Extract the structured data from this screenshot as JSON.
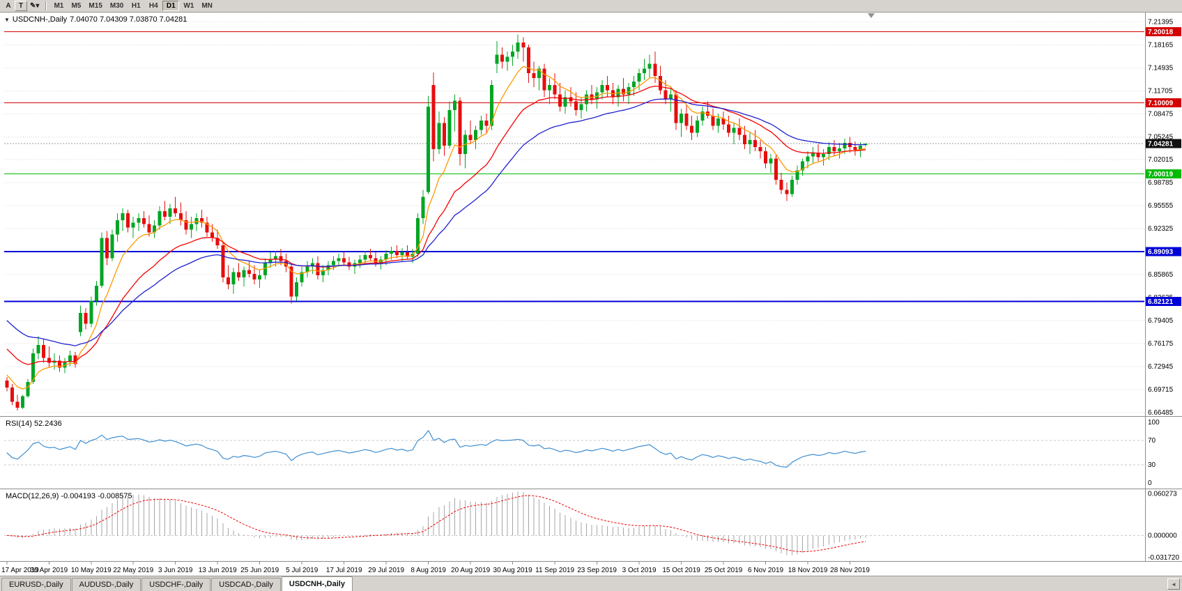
{
  "toolbar": {
    "button_a": "A",
    "button_t": "T",
    "draw_icon": "✎",
    "caret_icon": "▾",
    "timeframes": [
      {
        "label": "M1",
        "active": false
      },
      {
        "label": "M5",
        "active": false
      },
      {
        "label": "M15",
        "active": false
      },
      {
        "label": "M30",
        "active": false
      },
      {
        "label": "H1",
        "active": false
      },
      {
        "label": "H4",
        "active": false
      },
      {
        "label": "D1",
        "active": true
      },
      {
        "label": "W1",
        "active": false
      },
      {
        "label": "MN",
        "active": false
      }
    ]
  },
  "chart_header": {
    "collapse_icon": "▼",
    "symbol_title": "USDCNH-,Daily",
    "ohlc_text": "7.04070 7.04309 7.03870 7.04281"
  },
  "tabs": {
    "items": [
      {
        "label": "EURUSD-,Daily",
        "active": false
      },
      {
        "label": "AUDUSD-,Daily",
        "active": false
      },
      {
        "label": "USDCHF-,Daily",
        "active": false
      },
      {
        "label": "USDCAD-,Daily",
        "active": false
      },
      {
        "label": "USDCNH-,Daily",
        "active": true
      }
    ],
    "scroll_left_icon": "◄"
  },
  "chart_data": {
    "type": "candlestick",
    "symbol": "USDCNH-",
    "timeframe": "Daily",
    "colors": {
      "up": "#00A524",
      "down": "#E60D0D",
      "grid": "#DADADA",
      "background": "#FFFFFF"
    },
    "y_axis": {
      "min": 6.661,
      "max": 7.227,
      "grid_values": [
        6.66485,
        6.69715,
        6.72945,
        6.76175,
        6.79405,
        6.82635,
        6.85865,
        6.89095,
        6.92325,
        6.95555,
        6.98785,
        7.02015,
        7.05245,
        7.08475,
        7.11705,
        7.14935,
        7.18165,
        7.21395
      ]
    },
    "x_labels": [
      {
        "i": 0,
        "label": "17 Apr 2019"
      },
      {
        "i": 8,
        "label": "30 Apr 2019"
      },
      {
        "i": 16,
        "label": "10 May 2019"
      },
      {
        "i": 24,
        "label": "22 May 2019"
      },
      {
        "i": 32,
        "label": "3 Jun 2019"
      },
      {
        "i": 40,
        "label": "13 Jun 2019"
      },
      {
        "i": 48,
        "label": "25 Jun 2019"
      },
      {
        "i": 56,
        "label": "5 Jul 2019"
      },
      {
        "i": 64,
        "label": "17 Jul 2019"
      },
      {
        "i": 72,
        "label": "29 Jul 2019"
      },
      {
        "i": 80,
        "label": "8 Aug 2019"
      },
      {
        "i": 88,
        "label": "20 Aug 2019"
      },
      {
        "i": 96,
        "label": "30 Aug 2019"
      },
      {
        "i": 104,
        "label": "11 Sep 2019"
      },
      {
        "i": 112,
        "label": "23 Sep 2019"
      },
      {
        "i": 120,
        "label": "3 Oct 2019"
      },
      {
        "i": 128,
        "label": "15 Oct 2019"
      },
      {
        "i": 136,
        "label": "25 Oct 2019"
      },
      {
        "i": 144,
        "label": "6 Nov 2019"
      },
      {
        "i": 152,
        "label": "18 Nov 2019"
      },
      {
        "i": 160,
        "label": "28 Nov 2019"
      }
    ],
    "ohlc": [
      [
        6.71,
        6.715,
        6.695,
        6.7
      ],
      [
        6.7,
        6.705,
        6.675,
        6.68
      ],
      [
        6.68,
        6.69,
        6.668,
        6.672
      ],
      [
        6.672,
        6.69,
        6.67,
        6.688
      ],
      [
        6.688,
        6.712,
        6.686,
        6.708
      ],
      [
        6.708,
        6.755,
        6.705,
        6.748
      ],
      [
        6.748,
        6.772,
        6.74,
        6.76
      ],
      [
        6.76,
        6.768,
        6.735,
        6.742
      ],
      [
        6.742,
        6.758,
        6.728,
        6.735
      ],
      [
        6.735,
        6.748,
        6.725,
        6.738
      ],
      [
        6.738,
        6.745,
        6.722,
        6.728
      ],
      [
        6.728,
        6.742,
        6.72,
        6.736
      ],
      [
        6.736,
        6.752,
        6.73,
        6.745
      ],
      [
        6.745,
        6.75,
        6.728,
        6.733
      ],
      [
        6.778,
        6.815,
        6.772,
        6.805
      ],
      [
        6.805,
        6.812,
        6.782,
        6.79
      ],
      [
        6.79,
        6.828,
        6.785,
        6.822
      ],
      [
        6.822,
        6.85,
        6.815,
        6.843
      ],
      [
        6.843,
        6.918,
        6.84,
        6.91
      ],
      [
        6.91,
        6.92,
        6.872,
        6.882
      ],
      [
        6.882,
        6.922,
        6.878,
        6.915
      ],
      [
        6.915,
        6.945,
        6.905,
        6.935
      ],
      [
        6.935,
        6.952,
        6.92,
        6.945
      ],
      [
        6.945,
        6.95,
        6.918,
        6.925
      ],
      [
        6.925,
        6.94,
        6.91,
        6.932
      ],
      [
        6.932,
        6.945,
        6.92,
        6.938
      ],
      [
        6.938,
        6.948,
        6.925,
        6.93
      ],
      [
        6.93,
        6.942,
        6.912,
        6.918
      ],
      [
        6.918,
        6.935,
        6.91,
        6.928
      ],
      [
        6.928,
        6.955,
        6.922,
        6.948
      ],
      [
        6.948,
        6.962,
        6.935,
        6.94
      ],
      [
        6.94,
        6.958,
        6.93,
        6.952
      ],
      [
        6.952,
        6.968,
        6.94,
        6.945
      ],
      [
        6.945,
        6.96,
        6.928,
        6.935
      ],
      [
        6.935,
        6.948,
        6.915,
        6.922
      ],
      [
        6.922,
        6.94,
        6.91,
        6.93
      ],
      [
        6.93,
        6.945,
        6.92,
        6.938
      ],
      [
        6.938,
        6.95,
        6.925,
        6.932
      ],
      [
        6.932,
        6.94,
        6.912,
        6.918
      ],
      [
        6.918,
        6.93,
        6.905,
        6.91
      ],
      [
        6.91,
        6.922,
        6.895,
        6.9
      ],
      [
        6.9,
        6.905,
        6.848,
        6.855
      ],
      [
        6.855,
        6.872,
        6.838,
        6.845
      ],
      [
        6.845,
        6.868,
        6.832,
        6.862
      ],
      [
        6.862,
        6.875,
        6.85,
        6.855
      ],
      [
        6.855,
        6.87,
        6.842,
        6.865
      ],
      [
        6.865,
        6.878,
        6.855,
        6.86
      ],
      [
        6.86,
        6.872,
        6.845,
        6.852
      ],
      [
        6.852,
        6.865,
        6.84,
        6.858
      ],
      [
        6.858,
        6.882,
        6.852,
        6.875
      ],
      [
        6.875,
        6.89,
        6.868,
        6.88
      ],
      [
        6.88,
        6.892,
        6.87,
        6.885
      ],
      [
        6.885,
        6.895,
        6.872,
        6.878
      ],
      [
        6.878,
        6.888,
        6.862,
        6.87
      ],
      [
        6.87,
        6.875,
        6.818,
        6.828
      ],
      [
        6.828,
        6.855,
        6.822,
        6.848
      ],
      [
        6.848,
        6.87,
        6.842,
        6.862
      ],
      [
        6.862,
        6.878,
        6.855,
        6.87
      ],
      [
        6.87,
        6.882,
        6.86,
        6.875
      ],
      [
        6.875,
        6.885,
        6.852,
        6.858
      ],
      [
        6.858,
        6.872,
        6.848,
        6.865
      ],
      [
        6.865,
        6.878,
        6.858,
        6.872
      ],
      [
        6.872,
        6.885,
        6.865,
        6.878
      ],
      [
        6.878,
        6.888,
        6.87,
        6.882
      ],
      [
        6.882,
        6.89,
        6.872,
        6.876
      ],
      [
        6.876,
        6.884,
        6.865,
        6.87
      ],
      [
        6.87,
        6.88,
        6.86,
        6.875
      ],
      [
        6.875,
        6.886,
        6.868,
        6.88
      ],
      [
        6.88,
        6.892,
        6.874,
        6.886
      ],
      [
        6.886,
        6.895,
        6.878,
        6.882
      ],
      [
        6.882,
        6.89,
        6.87,
        6.875
      ],
      [
        6.875,
        6.885,
        6.866,
        6.88
      ],
      [
        6.88,
        6.893,
        6.872,
        6.888
      ],
      [
        6.888,
        6.898,
        6.88,
        6.892
      ],
      [
        6.892,
        6.9,
        6.882,
        6.886
      ],
      [
        6.886,
        6.896,
        6.878,
        6.89
      ],
      [
        6.89,
        6.9,
        6.88,
        6.884
      ],
      [
        6.884,
        6.895,
        6.875,
        6.888
      ],
      [
        6.888,
        6.945,
        6.884,
        6.938
      ],
      [
        6.938,
        6.978,
        6.93,
        6.968
      ],
      [
        6.975,
        7.11,
        6.972,
        7.095
      ],
      [
        7.125,
        7.143,
        7.018,
        7.035
      ],
      [
        7.035,
        7.088,
        7.028,
        7.072
      ],
      [
        7.072,
        7.08,
        7.026,
        7.04
      ],
      [
        7.04,
        7.102,
        7.036,
        7.09
      ],
      [
        7.09,
        7.112,
        7.06,
        7.103
      ],
      [
        7.103,
        7.108,
        7.012,
        7.028
      ],
      [
        7.028,
        7.062,
        7.008,
        7.055
      ],
      [
        7.055,
        7.075,
        7.042,
        7.048
      ],
      [
        7.048,
        7.068,
        7.035,
        7.062
      ],
      [
        7.062,
        7.082,
        7.055,
        7.075
      ],
      [
        7.075,
        7.085,
        7.058,
        7.068
      ],
      [
        7.068,
        7.132,
        7.062,
        7.125
      ],
      [
        7.155,
        7.187,
        7.142,
        7.168
      ],
      [
        7.168,
        7.178,
        7.148,
        7.158
      ],
      [
        7.158,
        7.172,
        7.145,
        7.165
      ],
      [
        7.165,
        7.182,
        7.152,
        7.172
      ],
      [
        7.172,
        7.196,
        7.162,
        7.185
      ],
      [
        7.185,
        7.192,
        7.158,
        7.178
      ],
      [
        7.178,
        7.182,
        7.128,
        7.142
      ],
      [
        7.142,
        7.158,
        7.122,
        7.135
      ],
      [
        7.135,
        7.152,
        7.118,
        7.148
      ],
      [
        7.148,
        7.155,
        7.108,
        7.118
      ],
      [
        7.118,
        7.135,
        7.098,
        7.125
      ],
      [
        7.125,
        7.142,
        7.105,
        7.112
      ],
      [
        7.112,
        7.128,
        7.088,
        7.095
      ],
      [
        7.095,
        7.118,
        7.085,
        7.108
      ],
      [
        7.108,
        7.122,
        7.095,
        7.102
      ],
      [
        7.102,
        7.115,
        7.082,
        7.09
      ],
      [
        7.09,
        7.108,
        7.078,
        7.098
      ],
      [
        7.098,
        7.118,
        7.088,
        7.112
      ],
      [
        7.112,
        7.125,
        7.098,
        7.105
      ],
      [
        7.105,
        7.122,
        7.092,
        7.115
      ],
      [
        7.115,
        7.132,
        7.105,
        7.125
      ],
      [
        7.125,
        7.138,
        7.108,
        7.118
      ],
      [
        7.118,
        7.128,
        7.098,
        7.108
      ],
      [
        7.108,
        7.125,
        7.095,
        7.12
      ],
      [
        7.12,
        7.135,
        7.102,
        7.112
      ],
      [
        7.112,
        7.128,
        7.098,
        7.122
      ],
      [
        7.122,
        7.138,
        7.11,
        7.13
      ],
      [
        7.13,
        7.148,
        7.118,
        7.142
      ],
      [
        7.142,
        7.162,
        7.132,
        7.148
      ],
      [
        7.148,
        7.168,
        7.135,
        7.155
      ],
      [
        7.155,
        7.172,
        7.128,
        7.138
      ],
      [
        7.138,
        7.152,
        7.112,
        7.118
      ],
      [
        7.118,
        7.132,
        7.098,
        7.105
      ],
      [
        7.105,
        7.122,
        7.088,
        7.112
      ],
      [
        7.112,
        7.118,
        7.062,
        7.072
      ],
      [
        7.072,
        7.092,
        7.052,
        7.085
      ],
      [
        7.085,
        7.098,
        7.062,
        7.068
      ],
      [
        7.068,
        7.082,
        7.048,
        7.058
      ],
      [
        7.058,
        7.082,
        7.052,
        7.075
      ],
      [
        7.075,
        7.095,
        7.068,
        7.088
      ],
      [
        7.088,
        7.102,
        7.078,
        7.082
      ],
      [
        7.082,
        7.092,
        7.062,
        7.068
      ],
      [
        7.068,
        7.085,
        7.058,
        7.078
      ],
      [
        7.078,
        7.088,
        7.062,
        7.07
      ],
      [
        7.07,
        7.082,
        7.052,
        7.058
      ],
      [
        7.058,
        7.072,
        7.042,
        7.065
      ],
      [
        7.065,
        7.078,
        7.048,
        7.055
      ],
      [
        7.055,
        7.068,
        7.035,
        7.042
      ],
      [
        7.042,
        7.058,
        7.028,
        7.048
      ],
      [
        7.048,
        7.062,
        7.032,
        7.038
      ],
      [
        7.038,
        7.048,
        7.022,
        7.032
      ],
      [
        7.032,
        7.038,
        7.008,
        7.015
      ],
      [
        7.015,
        7.028,
        7.002,
        7.022
      ],
      [
        7.022,
        7.028,
        6.985,
        6.992
      ],
      [
        6.992,
        7.002,
        6.972,
        6.978
      ],
      [
        6.978,
        6.988,
        6.962,
        6.972
      ],
      [
        6.972,
        6.998,
        6.968,
        6.992
      ],
      [
        6.992,
        7.012,
        6.985,
        7.005
      ],
      [
        7.005,
        7.022,
        6.998,
        7.018
      ],
      [
        7.018,
        7.032,
        7.008,
        7.025
      ],
      [
        7.025,
        7.038,
        7.015,
        7.03
      ],
      [
        7.03,
        7.042,
        7.018,
        7.024
      ],
      [
        7.024,
        7.035,
        7.012,
        7.028
      ],
      [
        7.028,
        7.045,
        7.02,
        7.038
      ],
      [
        7.038,
        7.048,
        7.025,
        7.032
      ],
      [
        7.032,
        7.044,
        7.022,
        7.036
      ],
      [
        7.036,
        7.05,
        7.028,
        7.044
      ],
      [
        7.044,
        7.052,
        7.03,
        7.038
      ],
      [
        7.038,
        7.046,
        7.026,
        7.034
      ],
      [
        7.034,
        7.045,
        7.024,
        7.04
      ],
      [
        7.0407,
        7.04309,
        7.0387,
        7.04281
      ]
    ],
    "h_lines": [
      {
        "price": 7.20018,
        "label": "7.20018",
        "color": "#D40000",
        "width": 1
      },
      {
        "price": 7.10009,
        "label": "7.10009",
        "color": "#D40000",
        "width": 1
      },
      {
        "price": 7.00019,
        "label": "7.00019",
        "color": "#00BB00",
        "width": 1
      },
      {
        "price": 6.89093,
        "label": "6.89093",
        "color": "#0000D8",
        "width": 2
      },
      {
        "price": 6.82121,
        "label": "6.82121",
        "color": "#0000D8",
        "width": 2
      }
    ],
    "current_price": {
      "value": 7.04281,
      "label": "7.04281",
      "badge_color": "#101010"
    },
    "moving_averages": [
      {
        "period": 8,
        "seed": 6.723,
        "color": "#FF9900"
      },
      {
        "period": 20,
        "seed": 6.76,
        "color": "#F50000"
      },
      {
        "period": 34,
        "seed": 6.8,
        "color": "#2020D0"
      }
    ],
    "rsi": {
      "label": "RSI(14) 52.2436",
      "period": 14,
      "color": "#3F8FD2",
      "levels": [
        70,
        30
      ],
      "axis_labels": [
        {
          "v": 100,
          "t": "100"
        },
        {
          "v": 70,
          "t": "70"
        },
        {
          "v": 30,
          "t": "30"
        },
        {
          "v": 0,
          "t": "0"
        }
      ],
      "range": [
        -8,
        108
      ]
    },
    "macd": {
      "label": "MACD(12,26,9) -0.004193 -0.008575",
      "fast": 12,
      "slow": 26,
      "signal": 9,
      "hist_color": "#A6A6A6",
      "signal_color": "#F00000",
      "range": [
        -0.036,
        0.066
      ],
      "axis_labels": [
        {
          "v": 0.060273,
          "t": "0.060273"
        },
        {
          "v": 0,
          "t": "0.000000"
        },
        {
          "v": -0.03172,
          "t": "-0.031720"
        }
      ]
    }
  }
}
